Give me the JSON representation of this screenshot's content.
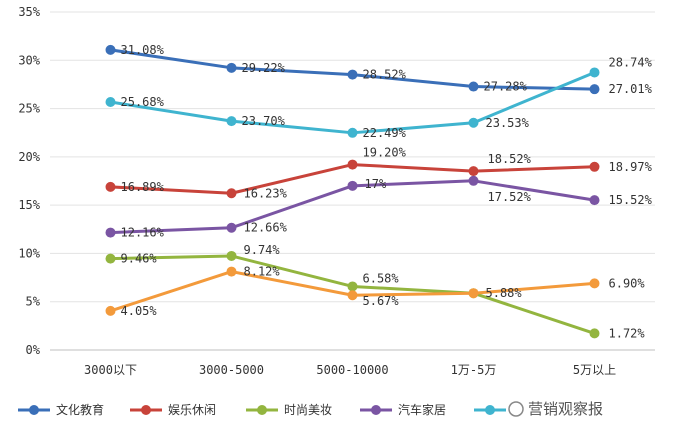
{
  "chart_data": {
    "type": "line",
    "categories": [
      "3000以下",
      "3000-5000",
      "5000-10000",
      "1万-5万",
      "5万以上"
    ],
    "ylim": [
      0,
      35
    ],
    "yticks": [
      "0%",
      "5%",
      "10%",
      "15%",
      "20%",
      "25%",
      "30%",
      "35%"
    ],
    "grid": true,
    "legend_position": "bottom",
    "series": [
      {
        "name": "文化教育",
        "color": "#3a6fb8",
        "values": [
          31.08,
          29.22,
          28.52,
          27.28,
          27.01
        ],
        "labels": [
          "31.08%",
          "29.22%",
          "28.52%",
          "27.28%",
          "27.01%"
        ]
      },
      {
        "name": "娱乐休闲",
        "color": "#c8433a",
        "values": [
          16.89,
          16.23,
          19.2,
          18.52,
          18.97
        ],
        "labels": [
          "16.89%",
          "16.23%",
          "19.20%",
          "18.52%",
          "18.97%"
        ]
      },
      {
        "name": "时尚美妆",
        "color": "#93b53f",
        "values": [
          9.46,
          9.74,
          6.58,
          5.88,
          1.72
        ],
        "labels": [
          "9.46%",
          "9.74%",
          "6.58%",
          "",
          "1.72%"
        ]
      },
      {
        "name": "汽车家居",
        "color": "#7a55a3",
        "values": [
          12.16,
          12.66,
          17.0,
          17.52,
          15.52
        ],
        "labels": [
          "12.16%",
          "12.66%",
          "17%",
          "17.52%",
          "15.52%"
        ]
      },
      {
        "name": "",
        "color": "#3fb4cf",
        "values": [
          25.68,
          23.7,
          22.49,
          23.53,
          28.74
        ],
        "labels": [
          "25.68%",
          "23.70%",
          "22.49%",
          "23.53%",
          "28.74%"
        ]
      },
      {
        "name": "",
        "color": "#f39a3b",
        "values": [
          4.05,
          8.12,
          5.67,
          5.88,
          6.9
        ],
        "labels": [
          "4.05%",
          "8.12%",
          "5.67%",
          "5.88%",
          "6.90%"
        ]
      }
    ]
  },
  "watermark": "营销观察报"
}
